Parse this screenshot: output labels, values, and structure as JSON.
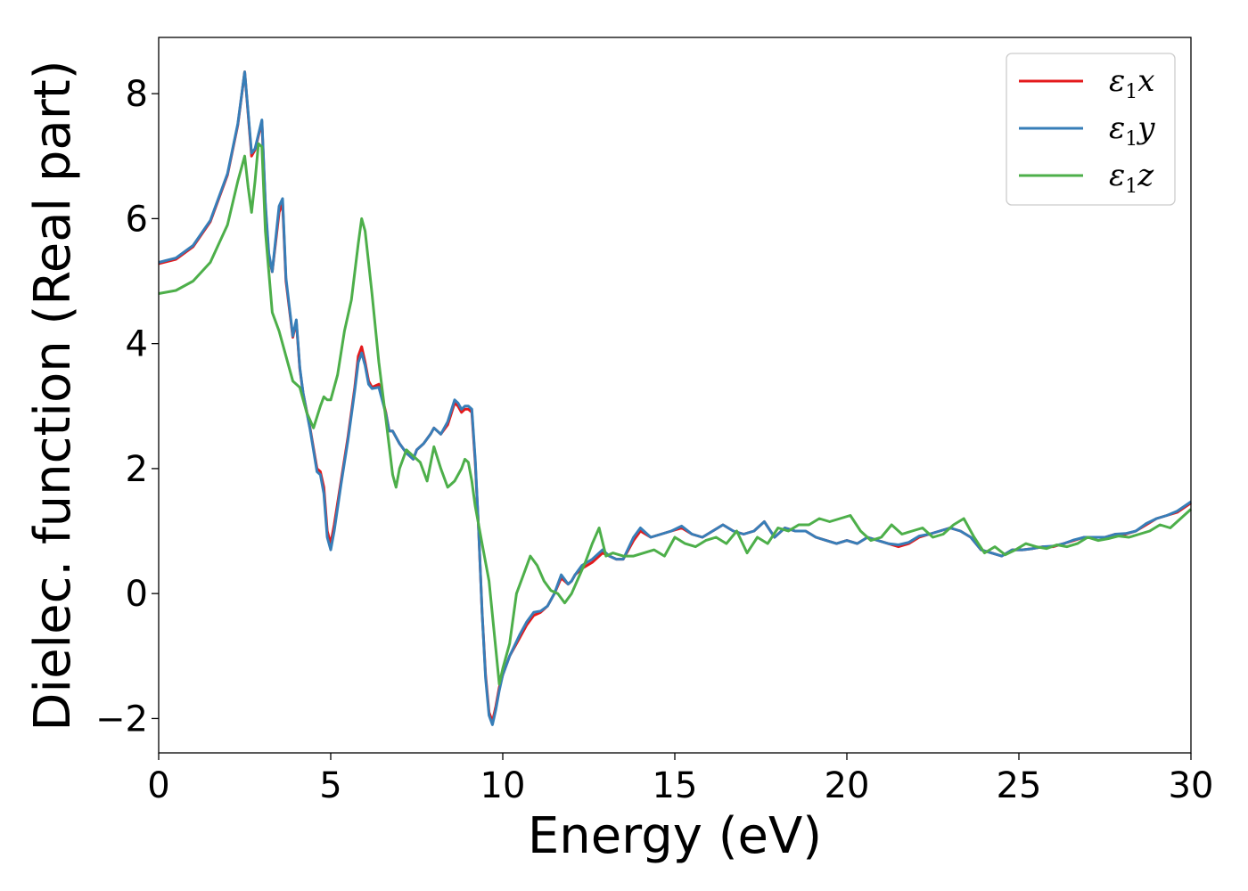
{
  "chart_data": {
    "type": "line",
    "title": "",
    "xlabel": "Energy (eV)",
    "ylabel": "Dielec. function (Real part)",
    "xlim": [
      0,
      30
    ],
    "ylim": [
      -2.55,
      8.9
    ],
    "xticks": [
      0,
      5,
      10,
      15,
      20,
      25,
      30
    ],
    "yticks": [
      -2,
      0,
      2,
      4,
      6,
      8
    ],
    "xtick_labels": [
      "0",
      "5",
      "10",
      "15",
      "20",
      "25",
      "30"
    ],
    "ytick_labels": [
      "−2",
      "0",
      "2",
      "4",
      "6",
      "8"
    ],
    "grid": false,
    "legend_position": "top-right",
    "series": [
      {
        "name": "ε1x",
        "legend_base": "ε",
        "legend_sub": "1",
        "legend_axis": "x",
        "color": "#e41a1c",
        "x": [
          0,
          0.5,
          1.0,
          1.5,
          2.0,
          2.3,
          2.5,
          2.7,
          2.8,
          3.0,
          3.1,
          3.2,
          3.3,
          3.5,
          3.6,
          3.7,
          3.9,
          4.0,
          4.1,
          4.2,
          4.4,
          4.6,
          4.7,
          4.8,
          4.9,
          5.0,
          5.1,
          5.3,
          5.5,
          5.7,
          5.8,
          5.9,
          6.0,
          6.1,
          6.2,
          6.4,
          6.6,
          6.7,
          6.8,
          7.0,
          7.2,
          7.4,
          7.5,
          7.7,
          7.9,
          8.0,
          8.2,
          8.4,
          8.6,
          8.7,
          8.8,
          8.9,
          9.0,
          9.1,
          9.2,
          9.3,
          9.4,
          9.5,
          9.6,
          9.7,
          9.8,
          9.9,
          10.0,
          10.2,
          10.5,
          10.7,
          10.9,
          11.1,
          11.3,
          11.5,
          11.7,
          11.9,
          12.0,
          12.1,
          12.3,
          12.6,
          12.9,
          13.1,
          13.3,
          13.5,
          13.8,
          14.0,
          14.3,
          14.6,
          14.9,
          15.2,
          15.5,
          15.8,
          16.1,
          16.4,
          16.7,
          17.0,
          17.3,
          17.6,
          17.9,
          18.2,
          18.5,
          18.8,
          19.1,
          19.4,
          19.7,
          20.0,
          20.3,
          20.6,
          20.9,
          21.2,
          21.5,
          21.8,
          22.1,
          22.4,
          22.7,
          23.0,
          23.3,
          23.6,
          23.9,
          24.2,
          24.5,
          24.8,
          25.1,
          25.4,
          25.7,
          26.0,
          26.3,
          26.6,
          26.9,
          27.2,
          27.5,
          27.8,
          28.1,
          28.4,
          28.7,
          29.0,
          29.3,
          29.6,
          30.0
        ],
        "y": [
          5.28,
          5.35,
          5.55,
          5.95,
          6.7,
          7.5,
          8.35,
          7.0,
          7.1,
          7.55,
          6.2,
          5.4,
          5.15,
          6.1,
          6.25,
          5.0,
          4.1,
          4.35,
          3.6,
          3.2,
          2.65,
          2.0,
          1.95,
          1.7,
          1.0,
          0.8,
          1.1,
          1.8,
          2.5,
          3.3,
          3.8,
          3.95,
          3.7,
          3.4,
          3.3,
          3.35,
          2.9,
          2.6,
          2.6,
          2.4,
          2.25,
          2.15,
          2.3,
          2.4,
          2.55,
          2.65,
          2.55,
          2.7,
          3.05,
          3.0,
          2.9,
          2.95,
          2.95,
          2.9,
          2.1,
          1.0,
          -0.3,
          -1.3,
          -1.9,
          -2.05,
          -1.8,
          -1.5,
          -1.3,
          -1.0,
          -0.7,
          -0.5,
          -0.35,
          -0.3,
          -0.2,
          0.0,
          0.25,
          0.15,
          0.2,
          0.3,
          0.4,
          0.5,
          0.65,
          0.6,
          0.55,
          0.55,
          0.85,
          1.0,
          0.9,
          0.95,
          1.0,
          1.05,
          0.95,
          0.9,
          1.0,
          1.1,
          1.0,
          0.95,
          1.0,
          1.15,
          0.9,
          1.05,
          1.0,
          1.0,
          0.9,
          0.85,
          0.8,
          0.85,
          0.8,
          0.9,
          0.85,
          0.8,
          0.75,
          0.8,
          0.9,
          0.95,
          1.0,
          1.05,
          1.0,
          0.9,
          0.7,
          0.65,
          0.6,
          0.7,
          0.7,
          0.72,
          0.75,
          0.75,
          0.8,
          0.85,
          0.9,
          0.9,
          0.9,
          0.95,
          0.95,
          1.0,
          1.1,
          1.2,
          1.25,
          1.3,
          1.45
        ]
      },
      {
        "name": "ε1y",
        "legend_base": "ε",
        "legend_sub": "1",
        "legend_axis": "y",
        "color": "#377eb8",
        "x": [
          0,
          0.5,
          1.0,
          1.5,
          2.0,
          2.3,
          2.5,
          2.7,
          2.8,
          3.0,
          3.1,
          3.2,
          3.3,
          3.5,
          3.6,
          3.7,
          3.9,
          4.0,
          4.1,
          4.2,
          4.4,
          4.6,
          4.7,
          4.8,
          4.9,
          5.0,
          5.1,
          5.3,
          5.5,
          5.7,
          5.8,
          5.9,
          6.0,
          6.1,
          6.2,
          6.4,
          6.6,
          6.7,
          6.8,
          7.0,
          7.2,
          7.4,
          7.5,
          7.7,
          7.9,
          8.0,
          8.2,
          8.4,
          8.6,
          8.7,
          8.8,
          8.9,
          9.0,
          9.1,
          9.2,
          9.3,
          9.4,
          9.5,
          9.6,
          9.7,
          9.8,
          9.9,
          10.0,
          10.2,
          10.5,
          10.7,
          10.9,
          11.1,
          11.3,
          11.5,
          11.7,
          11.9,
          12.0,
          12.1,
          12.3,
          12.6,
          12.9,
          13.1,
          13.3,
          13.5,
          13.8,
          14.0,
          14.3,
          14.6,
          14.9,
          15.2,
          15.5,
          15.8,
          16.1,
          16.4,
          16.7,
          17.0,
          17.3,
          17.6,
          17.9,
          18.2,
          18.5,
          18.8,
          19.1,
          19.4,
          19.7,
          20.0,
          20.3,
          20.6,
          20.9,
          21.2,
          21.5,
          21.8,
          22.1,
          22.4,
          22.7,
          23.0,
          23.3,
          23.6,
          23.9,
          24.2,
          24.5,
          24.8,
          25.1,
          25.4,
          25.7,
          26.0,
          26.3,
          26.6,
          26.9,
          27.2,
          27.5,
          27.8,
          28.1,
          28.4,
          28.7,
          29.0,
          29.3,
          29.6,
          30.0
        ],
        "y": [
          5.3,
          5.37,
          5.57,
          5.97,
          6.72,
          7.52,
          8.35,
          7.05,
          7.12,
          7.58,
          6.25,
          5.45,
          5.15,
          6.2,
          6.32,
          5.05,
          4.12,
          4.38,
          3.62,
          3.2,
          2.63,
          1.95,
          1.9,
          1.6,
          0.9,
          0.7,
          1.0,
          1.75,
          2.45,
          3.25,
          3.7,
          3.85,
          3.65,
          3.35,
          3.28,
          3.3,
          2.88,
          2.6,
          2.6,
          2.4,
          2.25,
          2.15,
          2.3,
          2.4,
          2.55,
          2.65,
          2.55,
          2.75,
          3.1,
          3.05,
          2.95,
          3.0,
          3.0,
          2.95,
          2.15,
          1.0,
          -0.3,
          -1.35,
          -1.95,
          -2.1,
          -1.85,
          -1.55,
          -1.3,
          -1.0,
          -0.65,
          -0.45,
          -0.3,
          -0.28,
          -0.2,
          0.0,
          0.3,
          0.15,
          0.2,
          0.3,
          0.45,
          0.55,
          0.7,
          0.6,
          0.55,
          0.55,
          0.9,
          1.05,
          0.9,
          0.95,
          1.0,
          1.08,
          0.95,
          0.9,
          1.0,
          1.1,
          1.0,
          0.95,
          1.0,
          1.15,
          0.9,
          1.05,
          1.0,
          1.0,
          0.9,
          0.85,
          0.8,
          0.85,
          0.8,
          0.9,
          0.85,
          0.8,
          0.78,
          0.82,
          0.92,
          0.95,
          1.0,
          1.05,
          1.0,
          0.9,
          0.7,
          0.65,
          0.6,
          0.7,
          0.7,
          0.72,
          0.75,
          0.76,
          0.8,
          0.86,
          0.9,
          0.9,
          0.9,
          0.95,
          0.96,
          1.0,
          1.12,
          1.2,
          1.25,
          1.32,
          1.47
        ]
      },
      {
        "name": "ε1z",
        "legend_base": "ε",
        "legend_sub": "1",
        "legend_axis": "z",
        "color": "#4daf4a",
        "x": [
          0,
          0.5,
          1.0,
          1.5,
          2.0,
          2.3,
          2.5,
          2.6,
          2.7,
          2.8,
          2.9,
          3.0,
          3.1,
          3.3,
          3.5,
          3.7,
          3.9,
          4.1,
          4.3,
          4.5,
          4.7,
          4.8,
          4.9,
          5.0,
          5.2,
          5.4,
          5.6,
          5.8,
          5.9,
          6.0,
          6.2,
          6.4,
          6.6,
          6.8,
          6.9,
          7.0,
          7.2,
          7.4,
          7.6,
          7.8,
          8.0,
          8.2,
          8.4,
          8.6,
          8.8,
          8.9,
          9.0,
          9.1,
          9.2,
          9.4,
          9.6,
          9.8,
          9.9,
          10.0,
          10.2,
          10.4,
          10.6,
          10.8,
          11.0,
          11.2,
          11.4,
          11.6,
          11.8,
          12.0,
          12.2,
          12.4,
          12.6,
          12.8,
          13.0,
          13.2,
          13.5,
          13.8,
          14.1,
          14.4,
          14.7,
          15.0,
          15.3,
          15.6,
          15.9,
          16.2,
          16.5,
          16.8,
          17.1,
          17.4,
          17.7,
          18.0,
          18.3,
          18.6,
          18.9,
          19.2,
          19.5,
          19.8,
          20.1,
          20.4,
          20.7,
          21.0,
          21.3,
          21.6,
          21.9,
          22.2,
          22.5,
          22.8,
          23.1,
          23.4,
          23.7,
          24.0,
          24.3,
          24.6,
          24.9,
          25.2,
          25.5,
          25.8,
          26.1,
          26.4,
          26.7,
          27.0,
          27.3,
          27.6,
          27.9,
          28.2,
          28.5,
          28.8,
          29.1,
          29.4,
          29.7,
          30.0
        ],
        "y": [
          4.8,
          4.85,
          5.0,
          5.3,
          5.9,
          6.6,
          7.0,
          6.5,
          6.1,
          6.6,
          7.2,
          7.15,
          5.8,
          4.5,
          4.2,
          3.8,
          3.4,
          3.3,
          2.9,
          2.65,
          3.0,
          3.15,
          3.1,
          3.1,
          3.5,
          4.2,
          4.7,
          5.6,
          6.0,
          5.8,
          4.8,
          3.7,
          2.8,
          1.9,
          1.7,
          2.0,
          2.3,
          2.2,
          2.1,
          1.8,
          2.35,
          2.0,
          1.7,
          1.8,
          2.0,
          2.15,
          2.1,
          1.8,
          1.4,
          0.8,
          0.2,
          -0.9,
          -1.45,
          -1.2,
          -0.8,
          0.0,
          0.3,
          0.6,
          0.45,
          0.2,
          0.05,
          0.0,
          -0.15,
          0.0,
          0.25,
          0.5,
          0.8,
          1.05,
          0.6,
          0.65,
          0.6,
          0.6,
          0.65,
          0.7,
          0.6,
          0.9,
          0.8,
          0.75,
          0.85,
          0.9,
          0.8,
          1.0,
          0.65,
          0.9,
          0.8,
          1.05,
          1.0,
          1.1,
          1.1,
          1.2,
          1.15,
          1.2,
          1.25,
          1.0,
          0.85,
          0.9,
          1.1,
          0.95,
          1.0,
          1.05,
          0.9,
          0.95,
          1.1,
          1.2,
          0.9,
          0.65,
          0.75,
          0.62,
          0.7,
          0.8,
          0.75,
          0.72,
          0.78,
          0.75,
          0.8,
          0.9,
          0.85,
          0.88,
          0.92,
          0.9,
          0.95,
          1.0,
          1.1,
          1.05,
          1.2,
          1.35
        ]
      }
    ]
  }
}
